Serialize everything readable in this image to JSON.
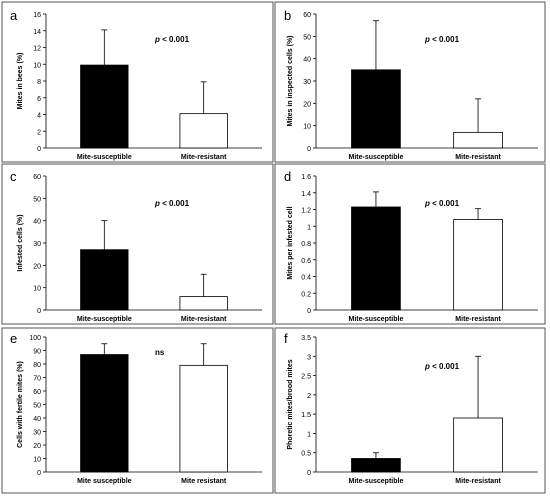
{
  "figure": {
    "panels": [
      {
        "letter": "a",
        "ylabel": "Mites in bees (%)",
        "annotation": "p < 0.001"
      },
      {
        "letter": "b",
        "ylabel": "Mites in inspected cells (%)",
        "annotation": "p < 0.001"
      },
      {
        "letter": "c",
        "ylabel": "Infested cells (%)",
        "annotation": "p < 0.001"
      },
      {
        "letter": "d",
        "ylabel": "Mites per infested cell",
        "annotation": "p < 0.001"
      },
      {
        "letter": "e",
        "ylabel": "Cells with fertile mites (%)",
        "annotation": "ns"
      },
      {
        "letter": "f",
        "ylabel": "Phoretic mites/brood mites",
        "annotation": "p < 0.001"
      }
    ]
  },
  "chart_data": [
    {
      "type": "bar",
      "panel": "a",
      "categories": [
        "Mite-susceptible",
        "Mite-resistant"
      ],
      "values": [
        9.9,
        4.1
      ],
      "error": [
        4.2,
        3.8
      ],
      "bar_colors": [
        "#000000",
        "#ffffff"
      ],
      "ylabel": "Mites in bees (%)",
      "ylim": [
        0,
        16
      ],
      "yticks": [
        "0",
        "2",
        "4",
        "6",
        "8",
        "10",
        "12",
        "14",
        "16"
      ],
      "annotation": "p < 0.001"
    },
    {
      "type": "bar",
      "panel": "b",
      "categories": [
        "Mite-susceptible",
        "Mite-resistant"
      ],
      "values": [
        35,
        7
      ],
      "error": [
        22,
        15
      ],
      "bar_colors": [
        "#000000",
        "#ffffff"
      ],
      "ylabel": "Mites in inspected cells (%)",
      "ylim": [
        0,
        60
      ],
      "yticks": [
        "0",
        "10",
        "20",
        "30",
        "40",
        "50",
        "60"
      ],
      "annotation": "p < 0.001"
    },
    {
      "type": "bar",
      "panel": "c",
      "categories": [
        "Mite-susceptible",
        "Mite-resistant"
      ],
      "values": [
        27,
        6
      ],
      "error": [
        13,
        10
      ],
      "bar_colors": [
        "#000000",
        "#ffffff"
      ],
      "ylabel": "Infested cells (%)",
      "ylim": [
        0,
        60
      ],
      "yticks": [
        "0",
        "10",
        "20",
        "30",
        "40",
        "50",
        "60"
      ],
      "annotation": "p < 0.001"
    },
    {
      "type": "bar",
      "panel": "d",
      "categories": [
        "Mite-susceptible",
        "Mite-resistant"
      ],
      "values": [
        1.23,
        1.08
      ],
      "error": [
        0.18,
        0.13
      ],
      "bar_colors": [
        "#000000",
        "#ffffff"
      ],
      "ylabel": "Mites per infested cell",
      "ylim": [
        0,
        1.6
      ],
      "yticks": [
        "0",
        "0.2",
        "0.4",
        "0.6",
        "0.8",
        "1",
        "1.2",
        "1.4",
        "1.6"
      ],
      "annotation": "p < 0.001"
    },
    {
      "type": "bar",
      "panel": "e",
      "categories": [
        "Mite susceptible",
        "Mite resistant"
      ],
      "values": [
        87,
        79
      ],
      "error": [
        8,
        16
      ],
      "bar_colors": [
        "#000000",
        "#ffffff"
      ],
      "ylabel": "Cells with fertile mites (%)",
      "ylim": [
        0,
        100
      ],
      "yticks": [
        "0",
        "10",
        "20",
        "30",
        "40",
        "50",
        "60",
        "70",
        "80",
        "90",
        "100"
      ],
      "annotation": "ns"
    },
    {
      "type": "bar",
      "panel": "f",
      "categories": [
        "Mite-susceptible",
        "Mite-resistant"
      ],
      "values": [
        0.35,
        1.4
      ],
      "error": [
        0.15,
        1.6
      ],
      "bar_colors": [
        "#000000",
        "#ffffff"
      ],
      "ylabel": "Phoretic mites/brood mites",
      "ylim": [
        0,
        3.5
      ],
      "yticks": [
        "0",
        "0.5",
        "1",
        "1.5",
        "2",
        "2.5",
        "3",
        "3.5"
      ],
      "annotation": "p < 0.001"
    }
  ]
}
